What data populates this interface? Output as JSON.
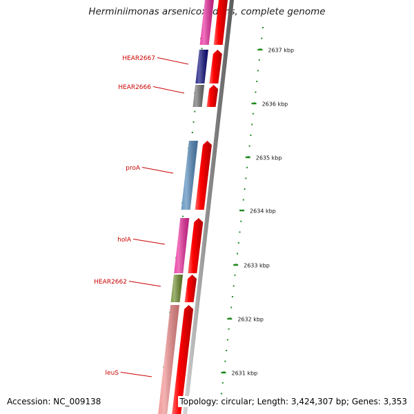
{
  "title": "Herminiimonas arsenicoxydans, complete genome",
  "footer": {
    "accession": "Accession: NC_009138",
    "topology": "Topology: circular; Length: 3,424,307 bp; Genes: 3,353"
  },
  "scale": {
    "unit": "kbp",
    "ticks": [
      {
        "label": "2637 kbp"
      },
      {
        "label": "2636 kbp"
      },
      {
        "label": "2635 kbp"
      },
      {
        "label": "2634 kbp"
      },
      {
        "label": "2633 kbp"
      },
      {
        "label": "2632 kbp"
      },
      {
        "label": "2631 kbp"
      }
    ]
  },
  "genes": [
    {
      "label": "",
      "color": "#e8279a",
      "strand_color": "#ff0000"
    },
    {
      "label": "HEAR2667",
      "color": "#0a0a7a",
      "strand_color": "#ff0000"
    },
    {
      "label": "HEAR2666",
      "color": "#6e6e6e",
      "strand_color": "#ff0000"
    },
    {
      "label": "proA",
      "color": "#4f86b8",
      "strand_color": "#ff0000"
    },
    {
      "label": "holA",
      "color": "#e8279a",
      "strand_color": "#ff0000"
    },
    {
      "label": "HEAR2662",
      "color": "#6b8a2a",
      "strand_color": "#ff0000"
    },
    {
      "label": "leuS",
      "color": "#ef8a8a",
      "strand_color": "#ff0000"
    }
  ],
  "colors": {
    "label_text": "#cc0000",
    "tick_green": "#1e8a1e",
    "backbone": "#8c8c8c"
  }
}
